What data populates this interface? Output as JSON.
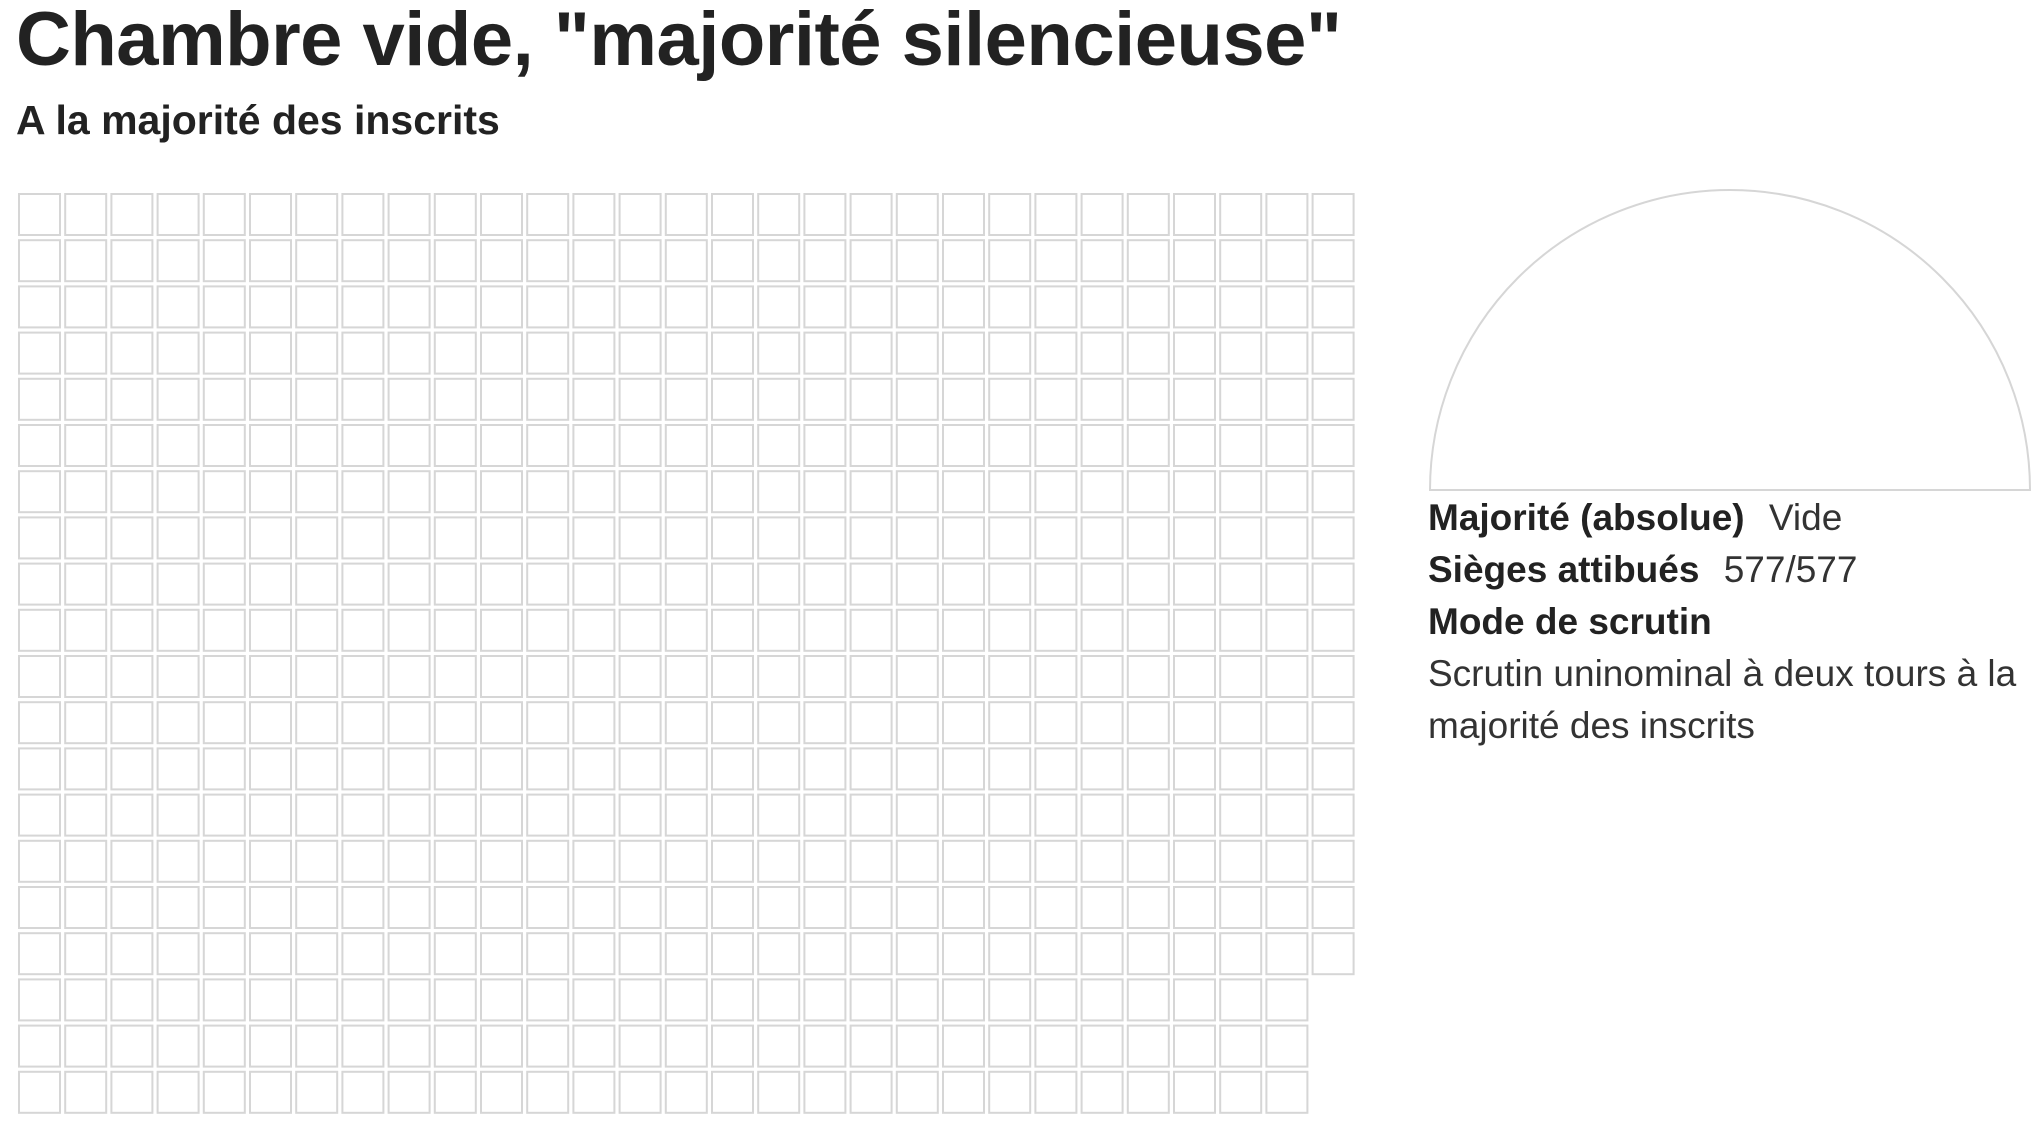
{
  "chart_data": {
    "type": "waffle",
    "title": "Chambre vide, \"majorité silencieuse\"",
    "subtitle": "A la majorité des inscrits",
    "total_seats": 577,
    "allocated_seats": 577,
    "grid": {
      "columns": 29,
      "full_rows": 17,
      "last_rows_columns": 28,
      "last_rows": 3
    },
    "series": [
      {
        "name": "Vide",
        "values": [
          577
        ],
        "fill": "#ffffff",
        "stroke": "#d6d6d6"
      }
    ],
    "hemicycle": {
      "shape": "half-disc",
      "fill": "#ffffff",
      "stroke": "#d6d6d6"
    },
    "info": {
      "majority_label": "Majorité (absolue)",
      "majority_value": "Vide",
      "seats_label": "Sièges attibués",
      "seats_value": "577/577",
      "mode_label": "Mode de scrutin",
      "mode_value": "Scrutin uninominal à deux tours à la majorité des inscrits"
    }
  },
  "colors": {
    "seat_stroke": "#d6d6d6",
    "seat_fill": "#ffffff",
    "text": "#222222"
  }
}
